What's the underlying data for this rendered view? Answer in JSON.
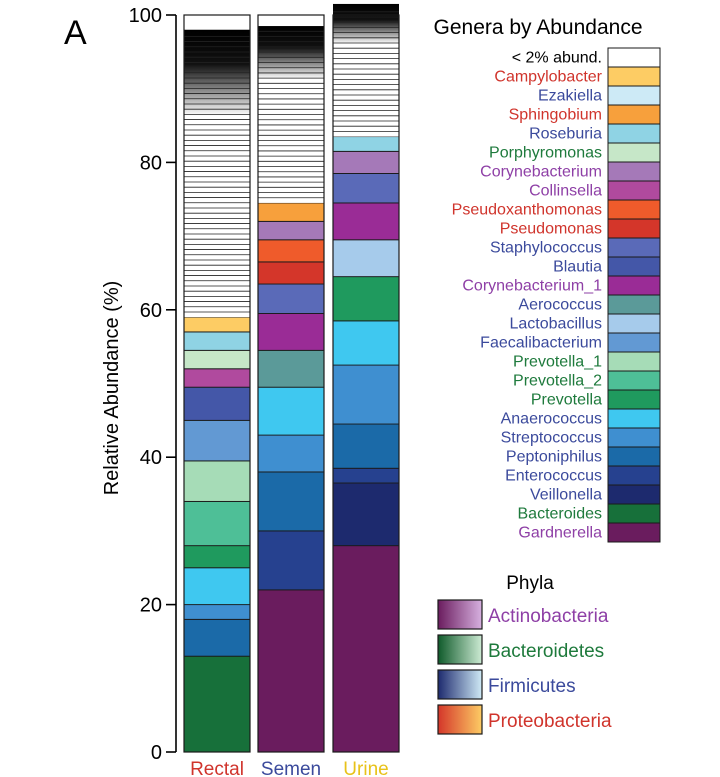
{
  "panel_label": "A",
  "chart_data": {
    "type": "stacked-bar",
    "title": "Genera by Abundance",
    "xlabel": "",
    "ylabel": "Relative Abundance (%)",
    "ylim": [
      0,
      100
    ],
    "yticks": [
      "0",
      "20",
      "40",
      "60",
      "80",
      "100"
    ],
    "categories": [
      {
        "name": "Rectal",
        "color": "#d0342c"
      },
      {
        "name": "Semen",
        "color": "#3b4a9c"
      },
      {
        "name": "Urine",
        "color": "#e8c21a"
      }
    ],
    "other_label": "< 2% abund.",
    "genera": [
      {
        "name": "Campylobacter",
        "phylum": "Proteobacteria",
        "label_color": "#d0342c",
        "color": "#fdcc64",
        "values": [
          2,
          0,
          0
        ]
      },
      {
        "name": "Ezakiella",
        "phylum": "Firmicutes",
        "label_color": "#3b4a9c",
        "color": "#cdeaf6",
        "values": [
          0,
          0,
          0
        ]
      },
      {
        "name": "Sphingobium",
        "phylum": "Proteobacteria",
        "label_color": "#d0342c",
        "color": "#f7a03c",
        "values": [
          0,
          2.5,
          0
        ]
      },
      {
        "name": "Roseburia",
        "phylum": "Firmicutes",
        "label_color": "#3b4a9c",
        "color": "#8fd3e4",
        "values": [
          2.5,
          0,
          2
        ]
      },
      {
        "name": "Porphyromonas",
        "phylum": "Bacteroidetes",
        "label_color": "#1e7a3c",
        "color": "#c6e7c8",
        "values": [
          2.5,
          0,
          0
        ]
      },
      {
        "name": "Corynebacterium",
        "phylum": "Actinobacteria",
        "label_color": "#8e3fa6",
        "color": "#a579b8",
        "values": [
          0,
          2.5,
          3
        ]
      },
      {
        "name": "Collinsella",
        "phylum": "Actinobacteria",
        "label_color": "#8e3fa6",
        "color": "#b04a9e",
        "values": [
          2.5,
          0,
          0
        ]
      },
      {
        "name": "Pseudoxanthomonas",
        "phylum": "Proteobacteria",
        "label_color": "#d0342c",
        "color": "#ef5b2b",
        "values": [
          0,
          3,
          0
        ]
      },
      {
        "name": "Pseudomonas",
        "phylum": "Proteobacteria",
        "label_color": "#d0342c",
        "color": "#d4362a",
        "values": [
          0,
          3,
          0
        ]
      },
      {
        "name": "Staphylococcus",
        "phylum": "Firmicutes",
        "label_color": "#3b4a9c",
        "color": "#5a6ab8",
        "values": [
          0,
          4,
          4
        ]
      },
      {
        "name": "Blautia",
        "phylum": "Firmicutes",
        "label_color": "#3b4a9c",
        "color": "#4457a8",
        "values": [
          4.5,
          0,
          0
        ]
      },
      {
        "name": "Corynebacterium_1",
        "phylum": "Actinobacteria",
        "label_color": "#8e3fa6",
        "color": "#9a2c96",
        "values": [
          0,
          5,
          5
        ]
      },
      {
        "name": "Aerococcus",
        "phylum": "Firmicutes",
        "label_color": "#3b4a9c",
        "color": "#5b9a99",
        "values": [
          0,
          5,
          0
        ]
      },
      {
        "name": "Lactobacillus",
        "phylum": "Firmicutes",
        "label_color": "#3b4a9c",
        "color": "#a6cbeb",
        "values": [
          0,
          0,
          5
        ]
      },
      {
        "name": "Faecalibacterium",
        "phylum": "Firmicutes",
        "label_color": "#3b4a9c",
        "color": "#6299d3",
        "values": [
          5.5,
          0,
          0
        ]
      },
      {
        "name": "Prevotella_1",
        "phylum": "Bacteroidetes",
        "label_color": "#1e7a3c",
        "color": "#a6dcb7",
        "values": [
          5.5,
          0,
          0
        ]
      },
      {
        "name": "Prevotella_2",
        "phylum": "Bacteroidetes",
        "label_color": "#1e7a3c",
        "color": "#4ebf97",
        "values": [
          6,
          0,
          0
        ]
      },
      {
        "name": "Prevotella",
        "phylum": "Bacteroidetes",
        "label_color": "#1e7a3c",
        "color": "#1f9a5e",
        "values": [
          3,
          0,
          6
        ]
      },
      {
        "name": "Anaerococcus",
        "phylum": "Firmicutes",
        "label_color": "#3b4a9c",
        "color": "#3fc8f0",
        "values": [
          5,
          6.5,
          6
        ]
      },
      {
        "name": "Streptococcus",
        "phylum": "Firmicutes",
        "label_color": "#3b4a9c",
        "color": "#3f8fd0",
        "values": [
          2,
          5,
          8
        ]
      },
      {
        "name": "Peptoniphilus",
        "phylum": "Firmicutes",
        "label_color": "#3b4a9c",
        "color": "#1b6aa8",
        "values": [
          5,
          8,
          6
        ]
      },
      {
        "name": "Enterococcus",
        "phylum": "Firmicutes",
        "label_color": "#3b4a9c",
        "color": "#26418f",
        "values": [
          0,
          8,
          2
        ]
      },
      {
        "name": "Veillonella",
        "phylum": "Firmicutes",
        "label_color": "#3b4a9c",
        "color": "#1d2a6e",
        "values": [
          0,
          0,
          8.5
        ]
      },
      {
        "name": "Bacteroides",
        "phylum": "Bacteroidetes",
        "label_color": "#1e7a3c",
        "color": "#17703a",
        "values": [
          13,
          0,
          0
        ]
      },
      {
        "name": "Gardnerella",
        "phylum": "Actinobacteria",
        "label_color": "#8e3fa6",
        "color": "#6a1c5e",
        "values": [
          0,
          22,
          28
        ]
      }
    ],
    "other_values": [
      39,
      24,
      18
    ],
    "phyla_legend": {
      "title": "Phyla",
      "items": [
        {
          "name": "Actinobacteria",
          "label_color": "#8e3fa6",
          "gradient": [
            "#6a1c5e",
            "#d7b1e0"
          ]
        },
        {
          "name": "Bacteroidetes",
          "label_color": "#1e7a3c",
          "gradient": [
            "#0f5a2a",
            "#cdebd4"
          ]
        },
        {
          "name": "Firmicutes",
          "label_color": "#3b4a9c",
          "gradient": [
            "#1d2a6e",
            "#cfeaf6"
          ]
        },
        {
          "name": "Proteobacteria",
          "label_color": "#d0342c",
          "gradient": [
            "#d4362a",
            "#fdcc64"
          ]
        }
      ]
    }
  }
}
